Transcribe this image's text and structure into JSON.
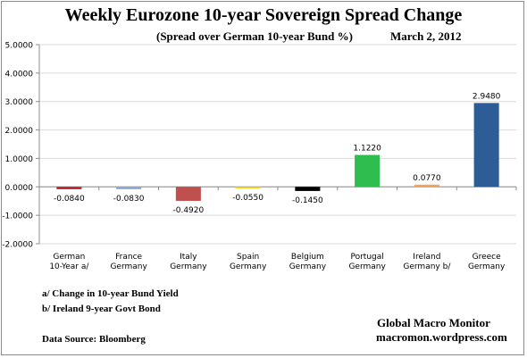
{
  "notes": {
    "note_a": "a/ Change in 10-year Bund Yield",
    "note_b": "b/ Ireland 9-year Govt Bond",
    "source": "Data Source:  Bloomberg",
    "credit_name": "Global Macro Monitor",
    "credit_site": "macromon.wordpress.com"
  },
  "chart_data": {
    "type": "bar",
    "title": "Weekly Eurozone 10-year Sovereign Spread Change",
    "subtitle": "(Spread over German 10-year Bund  %)",
    "date": "March 2,  2012",
    "categories": [
      [
        "German",
        "10-Year a/"
      ],
      [
        "France",
        "Germany"
      ],
      [
        "Italy",
        "Germany"
      ],
      [
        "Spain",
        "Germany"
      ],
      [
        "Belgium",
        "Germany"
      ],
      [
        "Portugal",
        "Germany"
      ],
      [
        "Ireland",
        "Germany b/"
      ],
      [
        "Greece",
        "Germany"
      ]
    ],
    "values": [
      -0.084,
      -0.083,
      -0.492,
      -0.055,
      -0.145,
      1.122,
      0.077,
      2.948
    ],
    "value_labels": [
      "-0.0840",
      "-0.0830",
      "-0.4920",
      "-0.0550",
      "-0.1450",
      "1.1220",
      "0.0770",
      "2.9480"
    ],
    "colors": [
      "#c0262d",
      "#8faadc",
      "#c0504d",
      "#ffd320",
      "#000000",
      "#2ebd4e",
      "#f4a460",
      "#2c5d96"
    ],
    "ylim": [
      -2,
      5
    ],
    "yticks": [
      -2,
      -1,
      0,
      1,
      2,
      3,
      4,
      5
    ],
    "ytick_labels": [
      "-2.0000",
      "-1.0000",
      "0.0000",
      "1.0000",
      "2.0000",
      "3.0000",
      "4.0000",
      "5.0000"
    ],
    "grid": true,
    "legend": false
  }
}
